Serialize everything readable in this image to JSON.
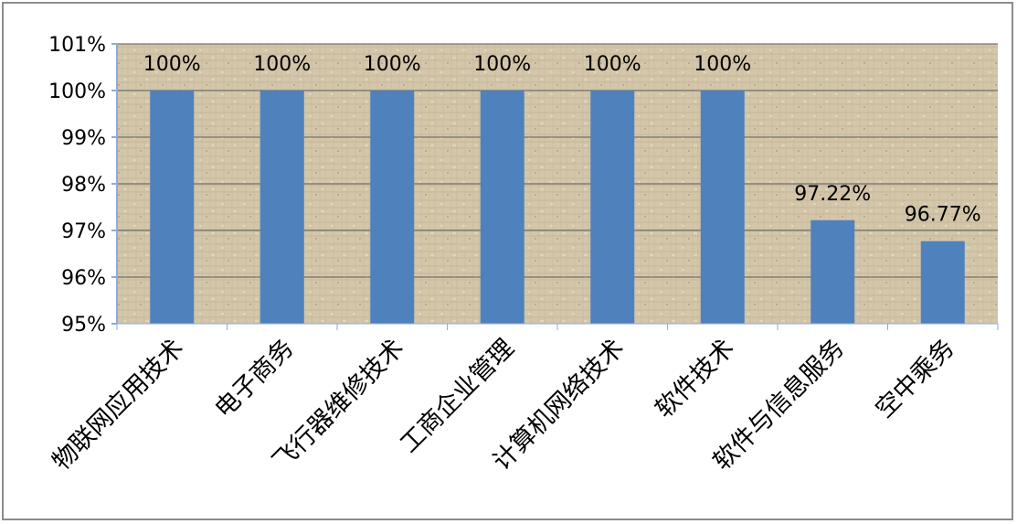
{
  "chart_data": {
    "type": "bar",
    "categories": [
      "物联网应用技术",
      "电子商务",
      "飞行器维修技术",
      "工商企业管理",
      "计算机网络技术",
      "软件技术",
      "软件与信息服务",
      "空中乘务"
    ],
    "values": [
      100,
      100,
      100,
      100,
      100,
      100,
      97.22,
      96.77
    ],
    "data_labels": [
      "100%",
      "100%",
      "100%",
      "100%",
      "100%",
      "100%",
      "97.22%",
      "96.77%"
    ],
    "yticks": [
      {
        "value": 101,
        "label": "101%"
      },
      {
        "value": 100,
        "label": "100%"
      },
      {
        "value": 99,
        "label": "99%"
      },
      {
        "value": 98,
        "label": "98%"
      },
      {
        "value": 97,
        "label": "97%"
      },
      {
        "value": 96,
        "label": "96%"
      },
      {
        "value": 95,
        "label": "95%"
      }
    ],
    "ylim": [
      95,
      101
    ],
    "title": "",
    "xlabel": "",
    "ylabel": "",
    "grid": true,
    "legend": "none",
    "colors": {
      "bar": "#4f81bd",
      "plot_background": "#d2c4a8",
      "gridline": "#595959",
      "axis": "#8faadc"
    }
  }
}
